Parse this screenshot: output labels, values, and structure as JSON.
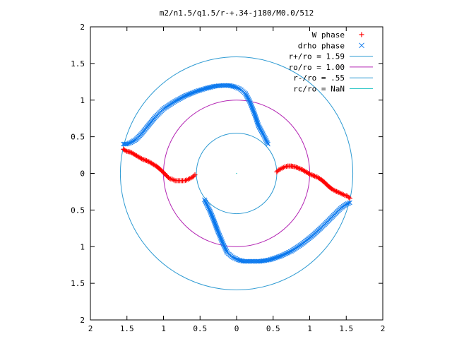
{
  "chart_data": {
    "type": "scatter",
    "title": "m2/n1.5/q1.5/r-+.34-j180/M0.0/512",
    "xlabel": "",
    "ylabel": "",
    "xlim": [
      -2,
      2
    ],
    "ylim": [
      -2,
      2
    ],
    "x_ticks": [
      {
        "value": -2,
        "label": "2"
      },
      {
        "value": -1.5,
        "label": "1.5"
      },
      {
        "value": -1,
        "label": "1"
      },
      {
        "value": -0.5,
        "label": "0.5"
      },
      {
        "value": 0,
        "label": "0"
      },
      {
        "value": 0.5,
        "label": "0.5"
      },
      {
        "value": 1,
        "label": "1"
      },
      {
        "value": 1.5,
        "label": "1.5"
      },
      {
        "value": 2,
        "label": "2"
      }
    ],
    "y_ticks": [
      {
        "value": 2,
        "label": "2"
      },
      {
        "value": 1.5,
        "label": "1.5"
      },
      {
        "value": 1,
        "label": "1"
      },
      {
        "value": 0.5,
        "label": "0.5"
      },
      {
        "value": 0,
        "label": "0"
      },
      {
        "value": -0.5,
        "label": "0.5"
      },
      {
        "value": -1,
        "label": "1"
      },
      {
        "value": -1.5,
        "label": "1.5"
      },
      {
        "value": -2,
        "label": "2"
      }
    ],
    "grid": false,
    "legend_position": "top-right",
    "circles": [
      {
        "name": "r+/ro = 1.59",
        "radius": 1.59,
        "color": "#2f9bd3"
      },
      {
        "name": "ro/ro = 1.00",
        "radius": 1.0,
        "color": "#b324b3"
      },
      {
        "name": "r-/ro = .55",
        "radius": 0.55,
        "color": "#2f9bd3"
      },
      {
        "name": "rc/ro = NaN",
        "radius": null,
        "color": "#34c9c9"
      }
    ],
    "series": [
      {
        "name": "W phase",
        "marker": "plus",
        "color": "#ff0000",
        "x": [
          1.55,
          1.52,
          1.48,
          1.44,
          1.4,
          1.35,
          1.3,
          1.25,
          1.2,
          1.15,
          1.1,
          1.05,
          1.0,
          0.95,
          0.9,
          0.85,
          0.8,
          0.75,
          0.7,
          0.66,
          0.62,
          0.58,
          0.55,
          -0.57,
          -0.6,
          -0.64,
          -0.68,
          -0.72,
          -0.76,
          -0.8,
          -0.84,
          -0.88,
          -0.92,
          -0.96,
          -1.0,
          -1.05,
          -1.1,
          -1.15,
          -1.2,
          -1.25,
          -1.3,
          -1.35,
          -1.4,
          -1.45,
          -1.5,
          -1.55
        ],
        "y": [
          -0.34,
          -0.31,
          -0.3,
          -0.28,
          -0.26,
          -0.24,
          -0.21,
          -0.17,
          -0.12,
          -0.08,
          -0.05,
          -0.03,
          -0.01,
          0.02,
          0.05,
          0.07,
          0.09,
          0.1,
          0.1,
          0.09,
          0.07,
          0.05,
          0.02,
          -0.02,
          -0.05,
          -0.07,
          -0.09,
          -0.1,
          -0.1,
          -0.1,
          -0.1,
          -0.08,
          -0.07,
          -0.03,
          0.01,
          0.06,
          0.1,
          0.13,
          0.16,
          0.18,
          0.2,
          0.23,
          0.26,
          0.29,
          0.3,
          0.33
        ]
      },
      {
        "name": "drho phase",
        "marker": "cross",
        "color": "#0a78ee",
        "x": [
          0.43,
          0.4,
          0.36,
          0.3,
          0.25,
          0.18,
          0.12,
          0.05,
          -0.02,
          -0.1,
          -0.2,
          -0.3,
          -0.42,
          -0.55,
          -0.7,
          -0.85,
          -1.0,
          -1.12,
          -1.22,
          -1.3,
          -1.38,
          -1.45,
          -1.5,
          -1.55,
          -0.44,
          -0.41,
          -0.37,
          -0.32,
          -0.26,
          -0.19,
          -0.13,
          -0.06,
          0.02,
          0.1,
          0.2,
          0.32,
          0.45,
          0.6,
          0.75,
          0.9,
          1.05,
          1.18,
          1.3,
          1.42,
          1.5,
          1.55
        ],
        "y": [
          0.4,
          0.46,
          0.54,
          0.65,
          0.8,
          0.98,
          1.09,
          1.15,
          1.18,
          1.2,
          1.2,
          1.19,
          1.16,
          1.12,
          1.06,
          0.98,
          0.88,
          0.76,
          0.64,
          0.54,
          0.46,
          0.42,
          0.4,
          0.4,
          -0.36,
          -0.42,
          -0.5,
          -0.62,
          -0.78,
          -0.95,
          -1.08,
          -1.14,
          -1.18,
          -1.2,
          -1.2,
          -1.2,
          -1.18,
          -1.13,
          -1.06,
          -0.96,
          -0.84,
          -0.72,
          -0.6,
          -0.48,
          -0.42,
          -0.4
        ]
      }
    ]
  }
}
